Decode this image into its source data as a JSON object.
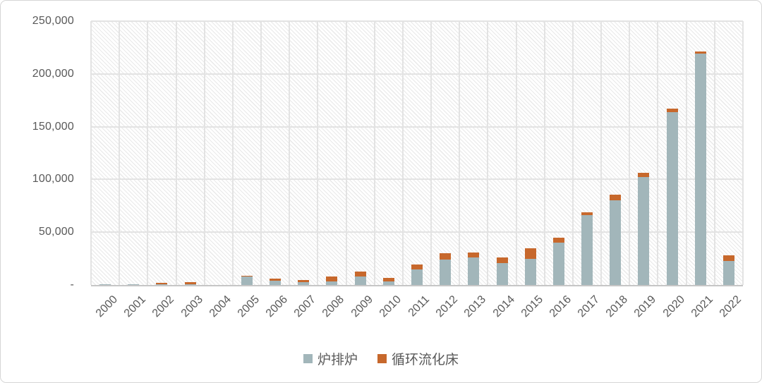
{
  "chart_data": {
    "type": "bar",
    "stacked": true,
    "title": "",
    "xlabel": "",
    "ylabel": "",
    "categories": [
      "2000",
      "2001",
      "2002",
      "2003",
      "2004",
      "2005",
      "2006",
      "2007",
      "2008",
      "2009",
      "2010",
      "2011",
      "2012",
      "2013",
      "2014",
      "2015",
      "2016",
      "2017",
      "2018",
      "2019",
      "2020",
      "2021",
      "2022"
    ],
    "series": [
      {
        "name": "炉排炉",
        "color": "#a2b6ba",
        "values": [
          300,
          1000,
          300,
          1000,
          0,
          8000,
          4000,
          3000,
          3500,
          8000,
          3500,
          15000,
          24000,
          26000,
          21000,
          25000,
          40000,
          66000,
          80000,
          102000,
          164000,
          219000,
          23000
        ]
      },
      {
        "name": "循环流化床",
        "color": "#c7682c",
        "values": [
          0,
          0,
          1700,
          1500,
          0,
          1000,
          2000,
          2000,
          4500,
          5000,
          3500,
          4500,
          6000,
          5000,
          5000,
          10000,
          5000,
          3000,
          5500,
          4000,
          3000,
          2500,
          5000
        ]
      }
    ],
    "ylim": [
      0,
      250000
    ],
    "yticks": [
      {
        "value": 0,
        "label": "-"
      },
      {
        "value": 50000,
        "label": "50,000"
      },
      {
        "value": 100000,
        "label": "100,000"
      },
      {
        "value": 150000,
        "label": "150,000"
      },
      {
        "value": 200000,
        "label": "200,000"
      },
      {
        "value": 250000,
        "label": "250,000"
      }
    ],
    "grid": true,
    "legend_position": "bottom",
    "plot_background": "diagonal-hatch"
  },
  "legend": {
    "items": [
      {
        "label": "炉排炉",
        "color": "#a2b6ba"
      },
      {
        "label": "循环流化床",
        "color": "#c7682c"
      }
    ]
  }
}
